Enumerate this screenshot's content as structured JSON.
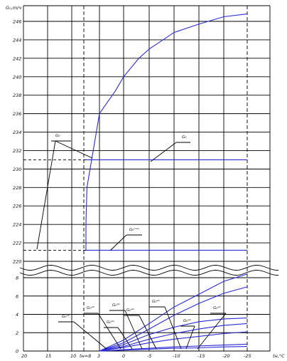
{
  "chart_data": {
    "type": "line",
    "ylabel": "G₀,m/ч",
    "xlabel": "tн,°C",
    "x_ticks": [
      "20",
      "15",
      "10",
      "tн=8",
      "3",
      "0",
      "-5",
      "-10",
      "-15",
      "-20",
      "-25"
    ],
    "x_values": [
      20,
      15,
      10,
      8,
      3,
      0,
      -5,
      -10,
      -15,
      -20,
      -25
    ],
    "y_upper_ticks": [
      "246",
      "244",
      "242",
      "240",
      "238",
      "236",
      "234",
      "232",
      "230",
      "228",
      "226",
      "224",
      "222",
      "220"
    ],
    "y_upper_values": [
      246,
      244,
      242,
      240,
      238,
      236,
      234,
      232,
      230,
      228,
      226,
      224,
      222,
      220
    ],
    "y_lower_ticks": [
      "8",
      "6",
      "4",
      "2",
      "0"
    ],
    "y_lower_values": [
      8,
      6,
      4,
      2,
      0
    ],
    "upper_series": [
      {
        "label": "G₀",
        "x": [
          8,
          7.9,
          7,
          5,
          3,
          1,
          0,
          -3,
          -5,
          -10,
          -15,
          -20,
          -25
        ],
        "y": [
          221.2,
          224,
          228,
          232,
          236,
          238.5,
          240,
          242,
          243,
          244.8,
          245.7,
          246.5,
          246.8
        ]
      },
      {
        "label": "G₀",
        "x": [
          8,
          -25
        ],
        "y": [
          231,
          231
        ]
      },
      {
        "label": "G₀ᵐᵃˣ",
        "x": [
          8,
          -25
        ],
        "y": [
          221.2,
          221.2
        ]
      }
    ],
    "lower_series": [
      {
        "label": "G₀ᵃᵇ",
        "x": [
          3,
          0,
          -5,
          -10,
          -15,
          -20,
          -25
        ],
        "y": [
          0,
          1.2,
          3,
          4.8,
          6.2,
          7.6,
          8.4
        ]
      },
      {
        "label": "G₀ᵛᵇ",
        "x": [
          3,
          0,
          -5,
          -10,
          -15,
          -20,
          -25
        ],
        "y": [
          0,
          0.9,
          2.4,
          3.9,
          5.2,
          6.3,
          7.0
        ]
      },
      {
        "label": "G₀ᵃᵇ",
        "x": [
          3,
          0,
          -5,
          -10,
          -15,
          -20,
          -25
        ],
        "y": [
          0,
          0.7,
          1.8,
          2.6,
          3.2,
          3.5,
          3.6
        ]
      },
      {
        "label": "G₀ᵃᵇ",
        "x": [
          3,
          0,
          -5,
          -10,
          -15,
          -20,
          -25
        ],
        "y": [
          0,
          0.5,
          1.3,
          1.9,
          2.4,
          2.8,
          3.0
        ]
      },
      {
        "label": "G₀ᵃᵇ",
        "x": [
          3,
          0,
          -5,
          -10,
          -15,
          -20,
          -25
        ],
        "y": [
          0,
          0.4,
          0.9,
          1.3,
          1.6,
          1.9,
          2.1
        ]
      },
      {
        "label": "G₀ᵃᵇ",
        "x": [
          3,
          0,
          -5,
          -10,
          -15,
          -20,
          -25
        ],
        "y": [
          0,
          0.15,
          0.3,
          0.45,
          0.55,
          0.65,
          0.75
        ]
      },
      {
        "label": "G₀ᵃᵇ",
        "x": [
          3,
          0,
          -5,
          -10,
          -15,
          -20,
          -25
        ],
        "y": [
          0,
          0.1,
          0.2,
          0.3,
          0.35,
          0.45,
          0.5
        ]
      }
    ],
    "annotations": [
      "G₀",
      "G₀",
      "G₀ᵐᵃˣ",
      "G₀ᵃᵇ",
      "G₀ᵃᵇ",
      "G₀ᵃᵇ",
      "G₀ᵃᵇ",
      "G₀ᵃᵇ",
      "G₀ᵃᵇ",
      "G₀ᵃᵇ",
      "G₀ᵃᵇ"
    ],
    "grid": true
  }
}
